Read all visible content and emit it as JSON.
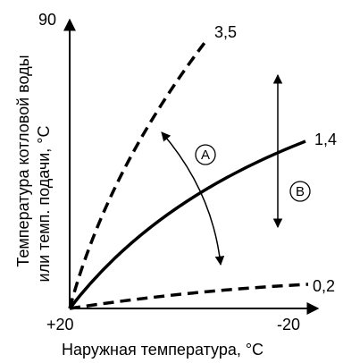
{
  "axes": {
    "y_label_line1": "Температура котловой воды",
    "y_label_line2": "или темп. подачи, °C",
    "x_label": "Наружная температура, °C",
    "y_tick_top": "90",
    "x_tick_left": "+20",
    "x_tick_right": "-20"
  },
  "curves": [
    {
      "label": "3,5",
      "style": "dashed"
    },
    {
      "label": "1,4",
      "style": "solid"
    },
    {
      "label": "0,2",
      "style": "dashed"
    }
  ],
  "markers": {
    "a": "A",
    "b": "B"
  }
}
